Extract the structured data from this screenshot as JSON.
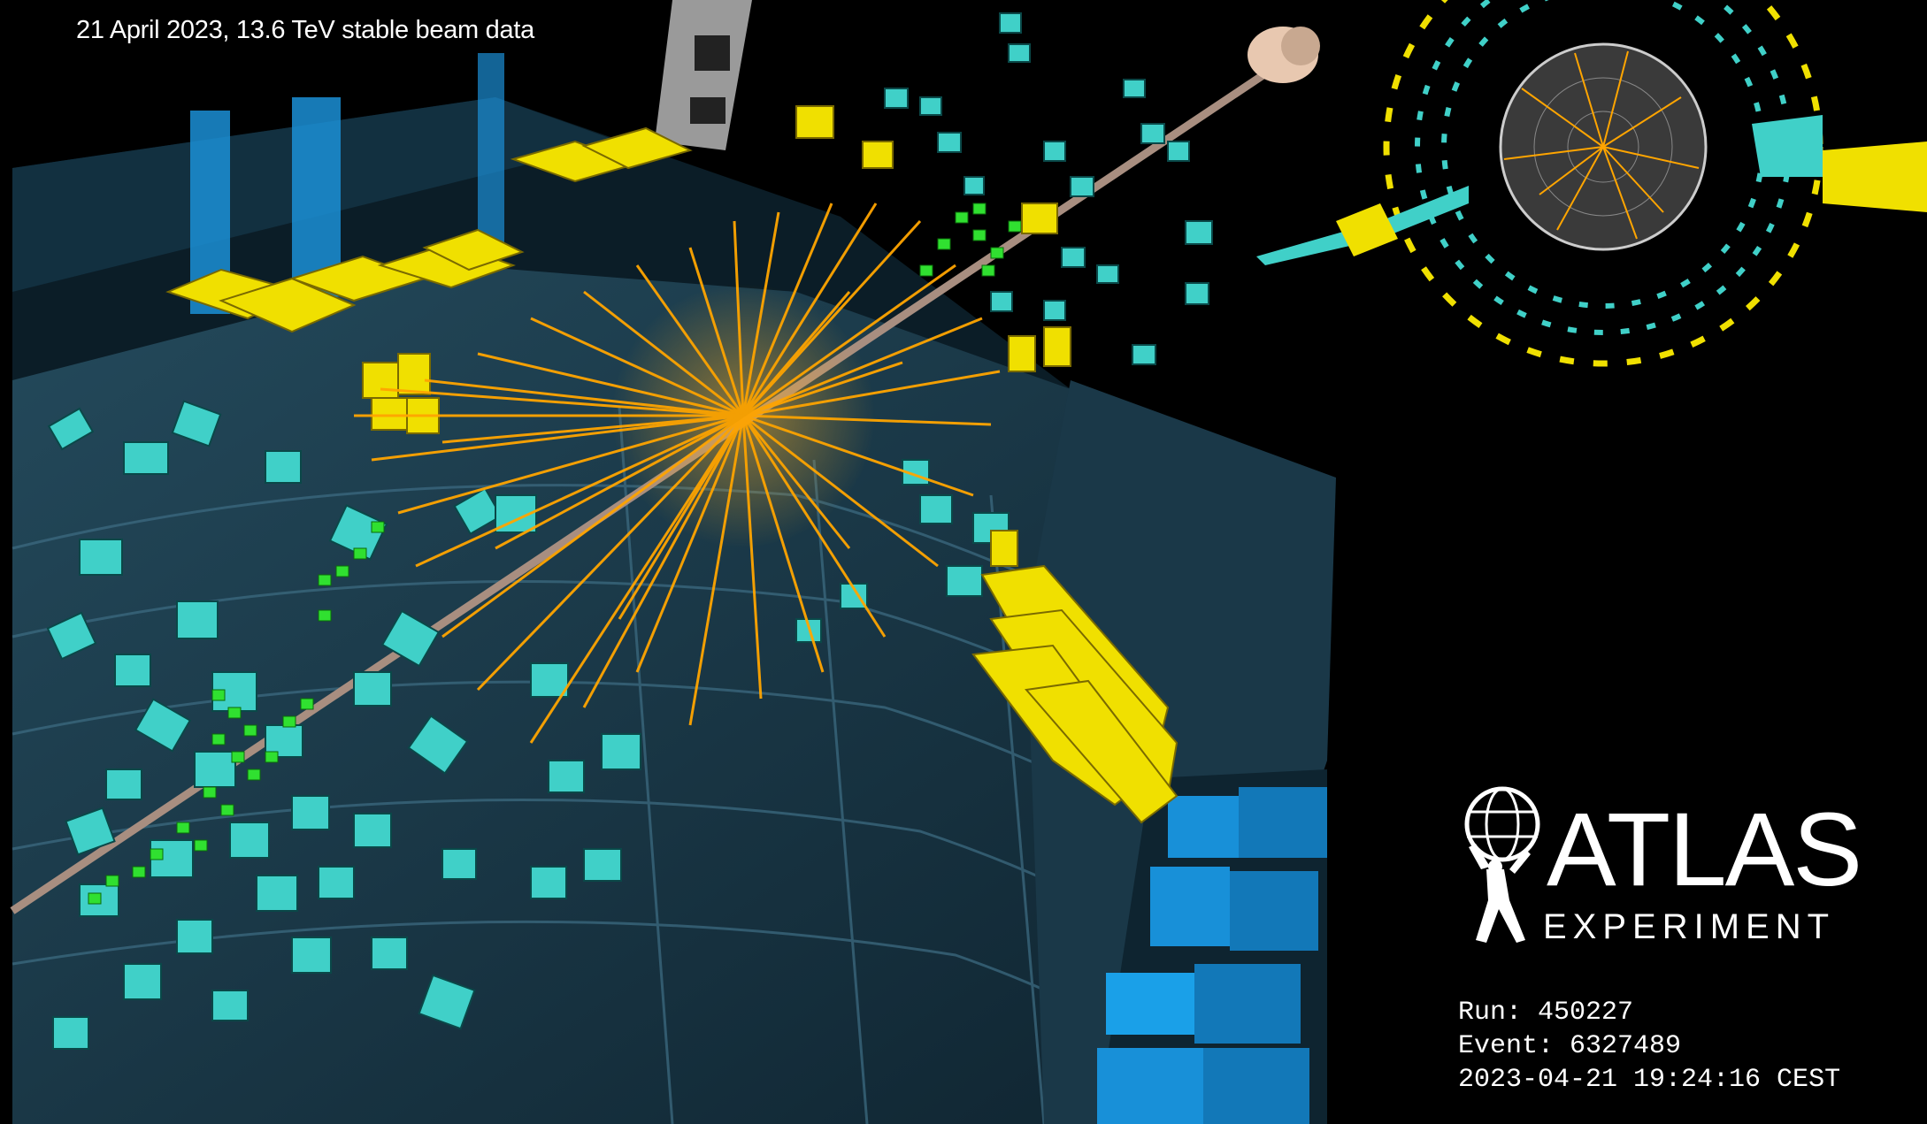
{
  "caption": "21 April 2023, 13.6 TeV stable beam data",
  "logo": {
    "name": "ATLAS",
    "subtitle": "EXPERIMENT"
  },
  "event_info": {
    "run": "Run: 450227",
    "event": "Event: 6327489",
    "timestamp": "2023-04-21 19:24:16 CEST"
  },
  "colors": {
    "background": "#000000",
    "tracks": "#ffa500",
    "calorimeter_cells": "#40d0c8",
    "hadronic_energy": "#f0e000",
    "inner_hits": "#30e030",
    "muon_chambers": "#1590d8",
    "detector_structure": "#1d3a4a",
    "beam_pipe": "#c8a890"
  },
  "icons": {
    "logo": "atlas-figure-holding-globe-icon"
  }
}
